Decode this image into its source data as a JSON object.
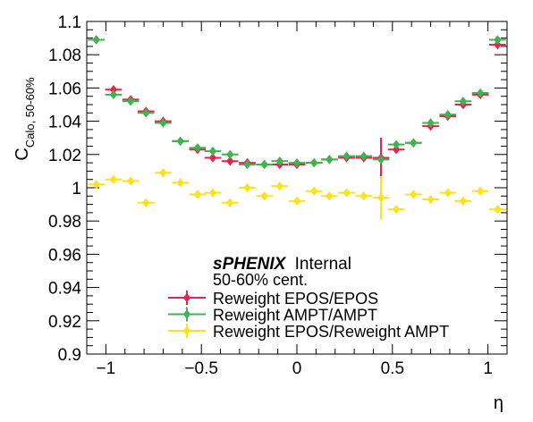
{
  "chart_data": {
    "type": "scatter",
    "title": "",
    "xlabel": "η",
    "ylabel_main": "C",
    "ylabel_sub": "Calo, 50-60%",
    "xlim": [
      -1.1,
      1.1
    ],
    "ylim": [
      0.9,
      1.1
    ],
    "x_ticks": [
      "−1",
      "−0.5",
      "0",
      "0.5",
      "1"
    ],
    "y_ticks": [
      "0.9",
      "0.92",
      "0.94",
      "0.96",
      "0.98",
      "1",
      "1.02",
      "1.04",
      "1.06",
      "1.08",
      "1.1"
    ],
    "x_tick_values": [
      -1,
      -0.5,
      0,
      0.5,
      1
    ],
    "y_tick_values": [
      0.9,
      0.92,
      0.94,
      0.96,
      0.98,
      1.0,
      1.02,
      1.04,
      1.06,
      1.08,
      1.1
    ],
    "grid": false,
    "legend_position": "bottom-center",
    "annotations": {
      "experiment": "sPHENIX",
      "status": "Internal",
      "centrality": "50-60% cent."
    },
    "x": [
      -1.05,
      -0.96,
      -0.87,
      -0.79,
      -0.7,
      -0.61,
      -0.52,
      -0.44,
      -0.35,
      -0.26,
      -0.17,
      -0.09,
      0.0,
      0.09,
      0.17,
      0.26,
      0.35,
      0.44,
      0.52,
      0.61,
      0.7,
      0.79,
      0.87,
      0.96,
      1.05
    ],
    "series": [
      {
        "name": "Reweight EPOS/EPOS",
        "color": "#e8224f",
        "values": [
          1.089,
          1.059,
          1.053,
          1.046,
          1.04,
          1.028,
          1.023,
          1.018,
          1.016,
          1.015,
          1.014,
          1.014,
          1.014,
          1.015,
          1.017,
          1.018,
          1.018,
          1.018,
          1.023,
          1.027,
          1.037,
          1.043,
          1.05,
          1.056,
          1.086
        ],
        "errors": [
          0.001,
          0.001,
          0.001,
          0.001,
          0.001,
          0.001,
          0.001,
          0.001,
          0.001,
          0.001,
          0.001,
          0.001,
          0.001,
          0.001,
          0.001,
          0.001,
          0.001,
          0.012,
          0.001,
          0.001,
          0.001,
          0.001,
          0.001,
          0.001,
          0.001
        ]
      },
      {
        "name": "Reweight AMPT/AMPT",
        "color": "#3db450",
        "values": [
          1.089,
          1.056,
          1.052,
          1.045,
          1.039,
          1.028,
          1.024,
          1.022,
          1.02,
          1.014,
          1.014,
          1.016,
          1.015,
          1.015,
          1.017,
          1.019,
          1.019,
          1.017,
          1.026,
          1.027,
          1.039,
          1.044,
          1.052,
          1.057,
          1.089
        ],
        "errors": [
          0.001,
          0.001,
          0.001,
          0.001,
          0.001,
          0.001,
          0.001,
          0.001,
          0.001,
          0.001,
          0.001,
          0.001,
          0.001,
          0.001,
          0.001,
          0.001,
          0.001,
          0.001,
          0.001,
          0.001,
          0.001,
          0.001,
          0.001,
          0.001,
          0.001
        ]
      },
      {
        "name": "Reweight EPOS/Reweight AMPT",
        "color": "#fde21a",
        "values": [
          1.002,
          1.005,
          1.004,
          0.991,
          1.009,
          1.003,
          0.996,
          0.997,
          0.991,
          1.0,
          0.995,
          1.001,
          0.992,
          0.998,
          0.995,
          0.997,
          0.995,
          0.994,
          0.987,
          0.996,
          0.993,
          0.997,
          0.992,
          0.998,
          0.987
        ],
        "errors": [
          0.001,
          0.001,
          0.001,
          0.001,
          0.001,
          0.001,
          0.001,
          0.001,
          0.001,
          0.001,
          0.001,
          0.001,
          0.001,
          0.001,
          0.001,
          0.001,
          0.001,
          0.013,
          0.001,
          0.001,
          0.001,
          0.001,
          0.001,
          0.001,
          0.001
        ]
      }
    ]
  }
}
